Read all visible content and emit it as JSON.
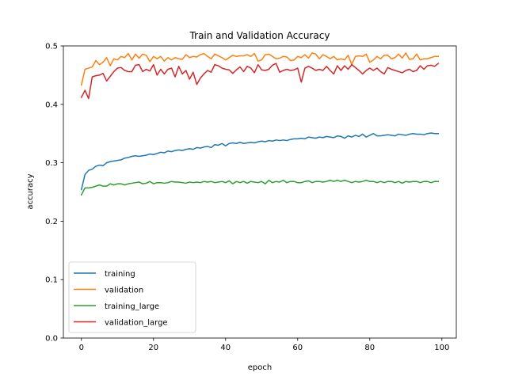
{
  "chart_data": {
    "type": "line",
    "title": "Train and Validation Accuracy",
    "xlabel": "epoch",
    "ylabel": "accuracy",
    "xlim": [
      -5,
      104
    ],
    "ylim": [
      0,
      0.5
    ],
    "xticks": [
      0,
      20,
      40,
      60,
      80,
      100
    ],
    "yticks": [
      0.0,
      0.1,
      0.2,
      0.3,
      0.4,
      0.5
    ],
    "grid": false,
    "legend_position": "lower-left",
    "series": [
      {
        "name": "training",
        "color": "#1f77b4",
        "values": [
          0.254,
          0.28,
          0.287,
          0.289,
          0.294,
          0.296,
          0.295,
          0.3,
          0.302,
          0.303,
          0.304,
          0.305,
          0.308,
          0.309,
          0.311,
          0.312,
          0.311,
          0.312,
          0.313,
          0.315,
          0.314,
          0.316,
          0.318,
          0.317,
          0.32,
          0.319,
          0.321,
          0.322,
          0.321,
          0.323,
          0.324,
          0.323,
          0.326,
          0.325,
          0.327,
          0.328,
          0.326,
          0.331,
          0.33,
          0.333,
          0.329,
          0.333,
          0.334,
          0.333,
          0.335,
          0.333,
          0.334,
          0.335,
          0.334,
          0.336,
          0.337,
          0.336,
          0.338,
          0.337,
          0.339,
          0.338,
          0.339,
          0.338,
          0.34,
          0.341,
          0.341,
          0.342,
          0.341,
          0.344,
          0.343,
          0.342,
          0.344,
          0.343,
          0.345,
          0.344,
          0.343,
          0.346,
          0.345,
          0.342,
          0.346,
          0.344,
          0.347,
          0.345,
          0.349,
          0.344,
          0.347,
          0.35,
          0.346,
          0.346,
          0.347,
          0.348,
          0.347,
          0.346,
          0.349,
          0.348,
          0.347,
          0.349,
          0.35,
          0.349,
          0.349,
          0.348,
          0.35,
          0.351,
          0.35,
          0.35
        ]
      },
      {
        "name": "validation",
        "color": "#ff7f0e",
        "values": [
          0.433,
          0.46,
          0.462,
          0.464,
          0.475,
          0.468,
          0.472,
          0.48,
          0.466,
          0.478,
          0.476,
          0.482,
          0.48,
          0.487,
          0.476,
          0.486,
          0.479,
          0.486,
          0.484,
          0.473,
          0.482,
          0.478,
          0.482,
          0.474,
          0.48,
          0.476,
          0.48,
          0.478,
          0.477,
          0.485,
          0.48,
          0.482,
          0.481,
          0.485,
          0.487,
          0.482,
          0.478,
          0.486,
          0.483,
          0.48,
          0.476,
          0.48,
          0.484,
          0.482,
          0.483,
          0.483,
          0.485,
          0.482,
          0.487,
          0.474,
          0.476,
          0.485,
          0.486,
          0.482,
          0.478,
          0.479,
          0.482,
          0.481,
          0.475,
          0.476,
          0.482,
          0.48,
          0.485,
          0.479,
          0.488,
          0.486,
          0.478,
          0.485,
          0.482,
          0.478,
          0.482,
          0.476,
          0.478,
          0.476,
          0.484,
          0.468,
          0.482,
          0.483,
          0.482,
          0.486,
          0.472,
          0.476,
          0.482,
          0.478,
          0.484,
          0.484,
          0.478,
          0.48,
          0.486,
          0.479,
          0.488,
          0.477,
          0.478,
          0.486,
          0.476,
          0.478,
          0.478,
          0.48,
          0.482,
          0.482
        ]
      },
      {
        "name": "training_large",
        "color": "#2ca02c",
        "values": [
          0.245,
          0.257,
          0.257,
          0.258,
          0.26,
          0.262,
          0.26,
          0.26,
          0.264,
          0.262,
          0.264,
          0.264,
          0.262,
          0.264,
          0.265,
          0.266,
          0.267,
          0.264,
          0.265,
          0.268,
          0.264,
          0.266,
          0.266,
          0.265,
          0.266,
          0.268,
          0.267,
          0.267,
          0.266,
          0.265,
          0.267,
          0.266,
          0.267,
          0.266,
          0.268,
          0.267,
          0.268,
          0.266,
          0.267,
          0.268,
          0.266,
          0.269,
          0.264,
          0.268,
          0.266,
          0.268,
          0.265,
          0.268,
          0.267,
          0.266,
          0.268,
          0.264,
          0.27,
          0.266,
          0.268,
          0.267,
          0.27,
          0.266,
          0.268,
          0.268,
          0.266,
          0.266,
          0.268,
          0.269,
          0.266,
          0.268,
          0.268,
          0.267,
          0.268,
          0.27,
          0.268,
          0.27,
          0.268,
          0.27,
          0.268,
          0.266,
          0.268,
          0.267,
          0.268,
          0.27,
          0.268,
          0.268,
          0.266,
          0.268,
          0.266,
          0.268,
          0.268,
          0.266,
          0.268,
          0.265,
          0.268,
          0.267,
          0.268,
          0.268,
          0.266,
          0.268,
          0.268,
          0.266,
          0.268,
          0.268
        ]
      },
      {
        "name": "validation_large",
        "color": "#d62728",
        "values": [
          0.412,
          0.424,
          0.41,
          0.447,
          0.449,
          0.45,
          0.453,
          0.44,
          0.448,
          0.456,
          0.462,
          0.463,
          0.458,
          0.456,
          0.456,
          0.467,
          0.468,
          0.456,
          0.46,
          0.457,
          0.468,
          0.45,
          0.46,
          0.452,
          0.46,
          0.462,
          0.447,
          0.465,
          0.452,
          0.458,
          0.443,
          0.455,
          0.434,
          0.445,
          0.452,
          0.458,
          0.455,
          0.468,
          0.466,
          0.462,
          0.46,
          0.459,
          0.453,
          0.459,
          0.464,
          0.456,
          0.465,
          0.462,
          0.454,
          0.468,
          0.459,
          0.458,
          0.46,
          0.467,
          0.47,
          0.455,
          0.458,
          0.46,
          0.458,
          0.459,
          0.462,
          0.438,
          0.462,
          0.465,
          0.462,
          0.458,
          0.46,
          0.458,
          0.465,
          0.458,
          0.452,
          0.466,
          0.458,
          0.466,
          0.46,
          0.468,
          0.463,
          0.458,
          0.452,
          0.458,
          0.462,
          0.458,
          0.462,
          0.456,
          0.452,
          0.463,
          0.46,
          0.458,
          0.456,
          0.454,
          0.458,
          0.46,
          0.456,
          0.458,
          0.466,
          0.46,
          0.466,
          0.467,
          0.465,
          0.47
        ]
      }
    ]
  }
}
